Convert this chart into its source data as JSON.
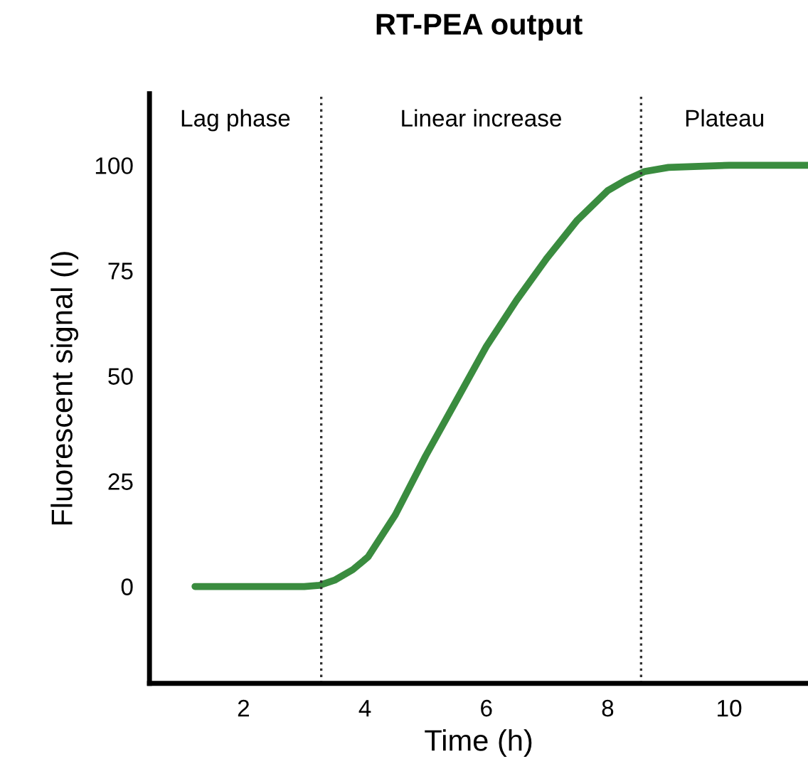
{
  "chart_data": {
    "type": "line",
    "title": "RT-PEA output",
    "xlabel": "Time (h)",
    "ylabel": "Fluorescent signal (I)",
    "x": [
      1.2,
      2,
      3,
      3.25,
      3.5,
      3.8,
      4.05,
      4.5,
      5,
      5.5,
      6,
      6.5,
      7,
      7.5,
      8,
      8.3,
      8.6,
      9,
      10,
      11.3
    ],
    "series": [
      {
        "color": "#3a8c3f",
        "values": [
          0,
          0,
          0,
          0.3,
          1.5,
          4,
          7,
          17,
          31,
          44,
          57,
          68,
          78,
          87,
          94,
          96.5,
          98.5,
          99.5,
          100,
          100
        ]
      }
    ],
    "xlim": [
      0.45,
      11.3
    ],
    "ylim": [
      -23,
      117
    ],
    "xticks": [
      2,
      4,
      6,
      8,
      10
    ],
    "yticks": [
      0,
      25,
      50,
      75,
      100
    ],
    "ref_lines": [
      {
        "axis": "x",
        "value": 3.28,
        "line_style": "dotted",
        "color": "#333333"
      },
      {
        "axis": "x",
        "value": 8.55,
        "line_style": "dotted",
        "color": "#333333"
      }
    ],
    "annotations": [
      "Lag phase",
      "Linear increase",
      "Plateau"
    ],
    "grid": false,
    "legend": false,
    "marker": "none",
    "line_style": "solid"
  }
}
